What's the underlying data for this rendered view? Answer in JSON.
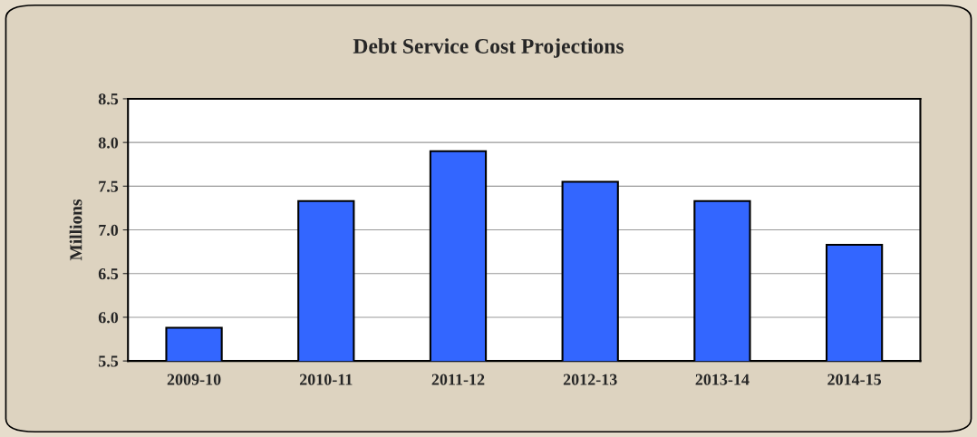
{
  "chart_data": {
    "type": "bar",
    "title": "Debt Service Cost Projections",
    "ylabel": "Millions",
    "categories": [
      "2009-10",
      "2010-11",
      "2011-12",
      "2012-13",
      "2013-14",
      "2014-15"
    ],
    "values": [
      5.88,
      7.33,
      7.9,
      7.55,
      7.33,
      6.83
    ],
    "color": "#3366ff",
    "ylim": [
      5.5,
      8.5
    ],
    "yticks": [
      5.5,
      {
        "value": 6,
        "label": "6.0"
      },
      6.5,
      {
        "value": 7,
        "label": "7.0"
      },
      7.5,
      {
        "value": 8,
        "label": "8.0"
      },
      8.5
    ],
    "grid": "y"
  }
}
